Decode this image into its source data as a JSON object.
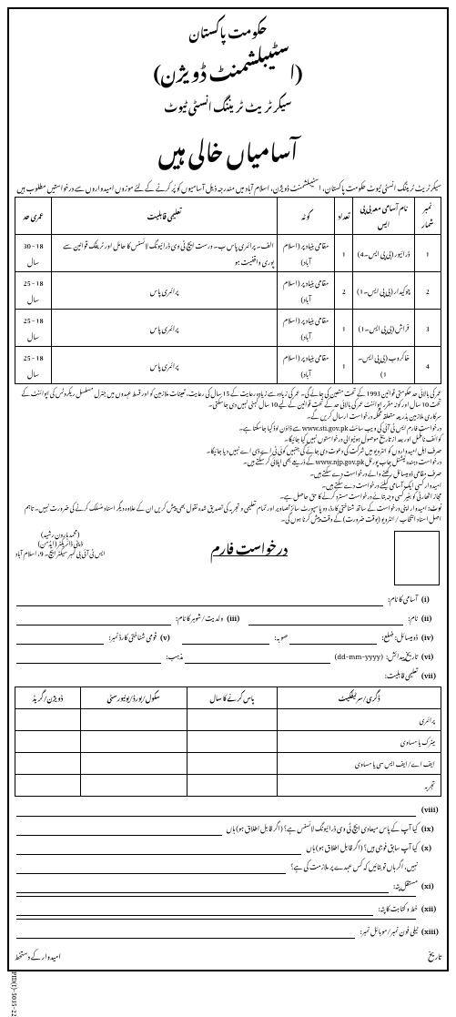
{
  "header": {
    "line1": "حکومت پاکستان",
    "line2": "(اسٹیبلشمنٹ ڈویژن)",
    "line3": "سیکرٹریٹ ٹریننگ انسٹی ٹیوٹ",
    "line4": "آسامیاں خالی ہیں"
  },
  "intro": "سیکرٹریٹ ٹریننگ انسٹی ٹیوٹ حکومت پاکستان، اسٹیبلشمنٹ ڈویژن، اسلام آباد میں مندرجہ ذیل آسامیوں کو پُر کرنے کے لئے موزوں امیدواروں سے درخواستیں مطلوب ہیں",
  "jobs_table": {
    "headers": [
      "نمبر شمار",
      "نام آسامی معہ بی پی ایس",
      "تعداد",
      "کوٹہ",
      "تعلیمی قابلیت",
      "عمری حد"
    ],
    "rows": [
      [
        "1",
        "ڈرائیور (بی پی ایس۔4)",
        "1",
        "مقامی بنیاد پر (اسلام آباد)",
        "الف۔ پرائمری پاس\nب۔ درست ایچ ٹی وی ڈرائیونگ لائسنس کا حامل اور ٹریفک قوانین سے پوری واقفیت ہو",
        "18 - 30 سال"
      ],
      [
        "2",
        "چوکیدار (بی پی ایس۔1)",
        "2",
        "مقامی بنیاد پر (اسلام آباد)",
        "پرائمری پاس",
        "18 - 25 سال"
      ],
      [
        "3",
        "فراش (بی پی ایس۔1)",
        "1",
        "مقامی بنیاد پر (اسلام آباد)",
        "پرائمری پاس",
        "18 - 25 سال"
      ],
      [
        "4",
        "خاکروب (بی پی ایس۔1)",
        "1",
        "مقامی بنیاد پر (اسلام آباد)",
        "پرائمری پاس",
        "18 - 25 سال"
      ]
    ]
  },
  "notes": {
    "items": [
      "عمر کی بالائی حد حکومتی قوانین 1993 کے تحت متعین کی جائے گی۔ عمر کی زیادہ سے زیادہ رعایت کے 15 سال کی رعایت، تعینات ملازمین کو اور قسط عہدوں میں جنرل مسلسل ریکروٹس کی اپوائنٹ کے تحت 10 سال اور کوٹہ مقرر اپوائنٹ عمر کی بالائی حد کے تحت قوانین کے لیے 10 سال کہنی نہیں دی جاسکتی۔",
      "سرکاری ملازمین بذریعہ متعلقہ محکمہ درخواست ارسال کریں گے۔",
      "درخواست فارم ایس ٹی آئی کی ویب سائٹ www.sti.gov.pk سے ڈاؤن لوڈ کیا جاسکتا ہے۔",
      "کوائف نامکمل اور بعد از تاریخ موصول ہونیوالی درخواستوں نہیں کیا جائیگا۔",
      "صرف اہل امیدواروں کو انٹرویو میں شرکت کی دعوت دی جائے گی جنہیں کوئی ٹی اے ڈی اے نہیں دیا جائیگا۔",
      "درخواست دہندہ نیشنل جاب پورٹل www.njp.gov.pk کے ذریعے بھی اپلائی کر سکتے ہیں۔",
      "صرف مقامی ڈومیسائل رکھنے والے درخواست دے سکتے ہیں۔",
      "امیدوار کسی ایک آسامی کیلئے درخواست دے سکتے ہیں۔",
      "مجاز اتھارٹی کو بغیر کسی وجہ بتائے درخواست مسترد کرنے کا حق حاصل ہے۔"
    ],
    "note_label": "نوٹ:",
    "note_text": "امیدوار اپنی درخواست کے ساتھ شناختی کارڈ، دو پاسپورٹ سائز تصاویر اور تمام تعلیمی و تجربہ کی تصدیق شدہ نقول بھی پیش کریں ان کے علاوہ دیگر اسناد منسلک کرنے کی ضرورت نہیں۔ تاہم اصل اسناد انتخاب / انٹرویو (بوقت ضرورت) کے وقت پیش کرنا ہوں گی۔"
  },
  "signature": {
    "name": "(محمد ہارون رشید)",
    "title": "ڈپٹی ڈائریکٹر (ایڈمن)",
    "address": "ایس ٹی آئی بی نمبر سیکٹر ایچ۔ 9، اسلام آباد"
  },
  "form": {
    "title": "درخواست فارم",
    "fields": {
      "f1": "آسامی کا نام:",
      "f2": "نام:",
      "f3": "ولدیت/شوہر کا نام:",
      "f4a": "ڈومیسائل: ضلع:",
      "f4b": "صوبہ:",
      "f5": "قومی شناختی کارڈ نمبر:",
      "f6a": "تاریخ پیدائش:",
      "f6b": "(dd-mm-yyyy)",
      "f6c": "مذہب:",
      "f7": "تعلیمی قابلیت:"
    },
    "roman": [
      "(i)",
      "(ii)",
      "(iii)",
      "(iv)",
      "(v)",
      "(vi)",
      "(vii)"
    ]
  },
  "edu_table": {
    "headers": [
      "ڈگری/سرٹیفکیٹ",
      "پاس کرنے کا سال",
      "سکول/بورڈ/یونیورسٹی",
      "ڈویژن/گریڈ"
    ],
    "rows": [
      "پرائمری",
      "میٹرک یا مساوی",
      "ایف اے/ایف ایس سی یا مساوی",
      "تجربہ"
    ]
  },
  "lower_fields": {
    "items": [
      {
        "r": "(viii)",
        "t": ""
      },
      {
        "r": "(ix)",
        "t": "کیا آپ کے پاس میعادی ایچ ٹی وی ڈرائیونگ لائسنس ہے؟ (اگر قابل اطلاق ہو) ہاں"
      },
      {
        "r": "(x)",
        "t": "کیا آپ سابق فوجی ہیں؟ (اگر قابل اطلاق ہو) ہاں"
      },
      {
        "r": "",
        "t": "نہیں، اگر ہاں تو بتائیں کہ کس عہدے پر ملازمت کی ہے؟"
      },
      {
        "r": "(xi)",
        "t": "مستقل پتہ:"
      },
      {
        "r": "(xii)",
        "t": "خط و کتابت کا پتہ:"
      },
      {
        "r": "(xiii)",
        "t": "ٹیلی فون نمبر/موبائل نمبر:"
      }
    ]
  },
  "footer": {
    "date": "تاریخ",
    "sign": "امیدوار کے دستخط"
  },
  "pid": "PID(I)-5035-22"
}
